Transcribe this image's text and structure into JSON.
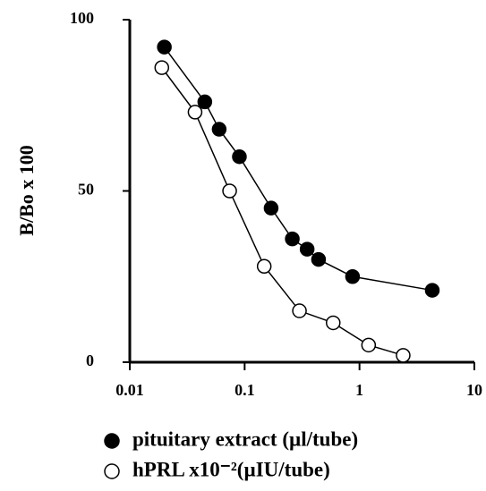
{
  "chart_data": {
    "type": "line",
    "xlabel": null,
    "ylabel": "B/Bo x 100",
    "xscale": "log",
    "xlim": [
      0.01,
      10
    ],
    "xticks": [
      0.01,
      0.1,
      1,
      10
    ],
    "ylim": [
      0,
      100
    ],
    "yticks": [
      0,
      50,
      100
    ],
    "grid": false,
    "legend": "bottom",
    "series": [
      {
        "name": "pituitary extract (µl/tube)",
        "color": "#000000",
        "marker_fill": "#000000",
        "x": [
          0.02,
          0.045,
          0.06,
          0.09,
          0.17,
          0.26,
          0.35,
          0.44,
          0.87,
          4.3
        ],
        "values": [
          92,
          76,
          68,
          60,
          45,
          36,
          33,
          30,
          25,
          21
        ]
      },
      {
        "name": "hPRL  x10⁻²(µIU/tube)",
        "color": "#000000",
        "marker_fill": "#ffffff",
        "x": [
          0.019,
          0.037,
          0.074,
          0.148,
          0.3,
          0.59,
          1.2,
          2.4
        ],
        "values": [
          86,
          73,
          50,
          28,
          15,
          11.5,
          5,
          2
        ]
      }
    ]
  }
}
